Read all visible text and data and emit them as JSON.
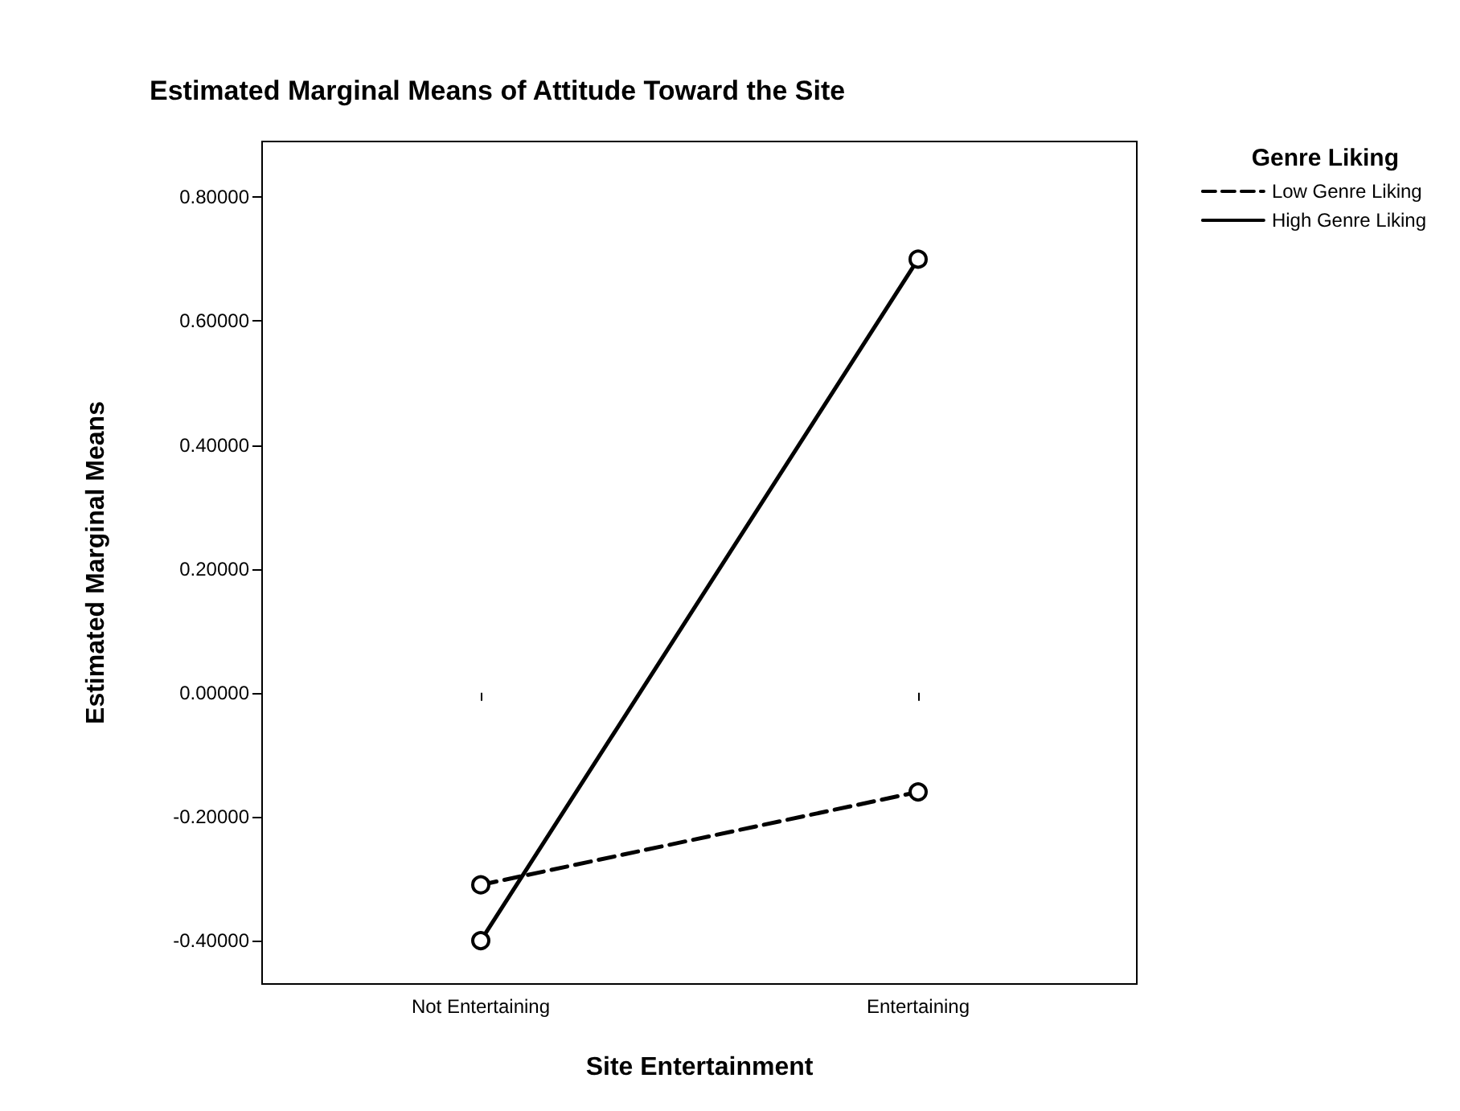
{
  "chart_data": {
    "type": "line",
    "title": "Estimated Marginal Means of Attitude Toward the Site",
    "xlabel": "Site Entertainment",
    "ylabel": "Estimated Marginal Means",
    "legend_title": "Genre Liking",
    "categories": [
      "Not Entertaining",
      "Entertaining"
    ],
    "series": [
      {
        "name": "Low Genre Liking",
        "color": "#000000",
        "values": [
          -0.31,
          -0.16
        ],
        "line_style": "dashed"
      },
      {
        "name": "High Genre Liking",
        "color": "#000000",
        "values": [
          -0.4,
          0.7
        ],
        "line_style": "solid"
      }
    ],
    "ylim": [
      -0.47,
      0.89
    ],
    "yticks": [
      {
        "value": -0.4,
        "label": "-0.40000"
      },
      {
        "value": -0.2,
        "label": "-0.20000"
      },
      {
        "value": 0,
        "label": "0.00000"
      },
      {
        "value": 0.2,
        "label": "0.20000"
      },
      {
        "value": 0.4,
        "label": "0.40000"
      },
      {
        "value": 0.6,
        "label": "0.60000"
      },
      {
        "value": 0.8,
        "label": "0.80000"
      }
    ],
    "marker": "circle",
    "legend": "top right"
  }
}
